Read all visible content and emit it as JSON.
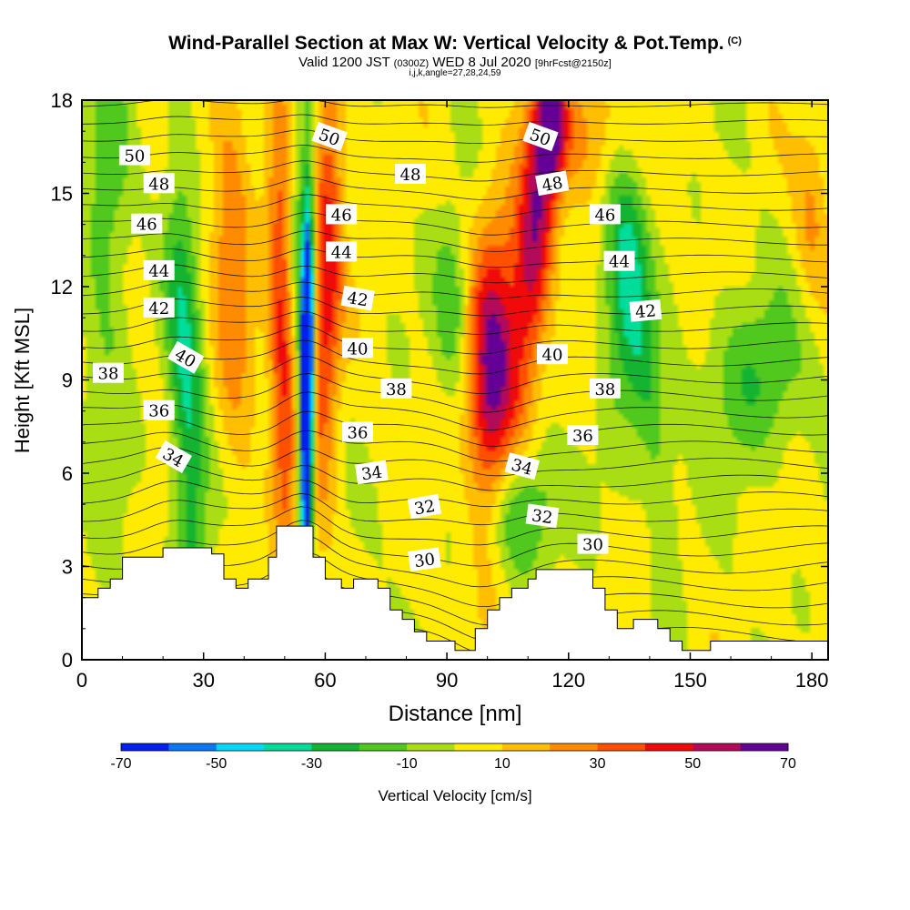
{
  "header": {
    "title": "Wind-Parallel Section at Max W: Vertical Velocity & Pot.Temp.",
    "copyright_mark": "(C)",
    "valid_prefix": "Valid 1200 JST",
    "valid_utc": "(0300Z)",
    "valid_date": "WED 8 Jul 2020",
    "forecast_info": "[9hrFcst@2150z]",
    "indices": "i,j,k,angle=27,28,24,59"
  },
  "chart_data": {
    "type": "contour-section",
    "xlabel": "Distance [nm]",
    "ylabel": "Height [Kft MSL]",
    "xlim": [
      0,
      184
    ],
    "ylim": [
      0,
      18
    ],
    "x_ticks": [
      0,
      30,
      60,
      90,
      120,
      150,
      180
    ],
    "y_ticks": [
      0,
      3,
      6,
      9,
      12,
      15,
      18
    ],
    "colorbar": {
      "label": "Vertical Velocity [cm/s]",
      "tick_labels": [
        -70,
        -50,
        -30,
        -10,
        10,
        30,
        50,
        70
      ],
      "bounds": [
        -70,
        -60,
        -50,
        -40,
        -30,
        -20,
        -10,
        0,
        10,
        20,
        30,
        40,
        50,
        60,
        70
      ],
      "colors": [
        "#0020f0",
        "#0a78f5",
        "#00d8f8",
        "#00dc9a",
        "#14b432",
        "#50c81e",
        "#aade14",
        "#ffeb00",
        "#ffbe00",
        "#ff8c00",
        "#ff5000",
        "#f00a0a",
        "#b40a5a",
        "#640096"
      ]
    },
    "contour_labels": [
      {
        "text": "50",
        "x": 13,
        "y": 16.2,
        "angle": 0
      },
      {
        "text": "48",
        "x": 19,
        "y": 15.3,
        "angle": 0
      },
      {
        "text": "46",
        "x": 16,
        "y": 14.0,
        "angle": 0
      },
      {
        "text": "44",
        "x": 19,
        "y": 12.5,
        "angle": 0
      },
      {
        "text": "42",
        "x": 19,
        "y": 11.3,
        "angle": 0
      },
      {
        "text": "40",
        "x": 25.5,
        "y": 9.7,
        "angle": 30
      },
      {
        "text": "38",
        "x": 6.5,
        "y": 9.2,
        "angle": 0
      },
      {
        "text": "36",
        "x": 19,
        "y": 8.0,
        "angle": 0
      },
      {
        "text": "34",
        "x": 22.5,
        "y": 6.5,
        "angle": 30
      },
      {
        "text": "50",
        "x": 61,
        "y": 16.8,
        "angle": 20
      },
      {
        "text": "46",
        "x": 64,
        "y": 14.3,
        "angle": 0
      },
      {
        "text": "44",
        "x": 64,
        "y": 13.1,
        "angle": 0
      },
      {
        "text": "42",
        "x": 68,
        "y": 11.6,
        "angle": 10
      },
      {
        "text": "40",
        "x": 68,
        "y": 10.0,
        "angle": 0
      },
      {
        "text": "36",
        "x": 68,
        "y": 7.3,
        "angle": 0
      },
      {
        "text": "34",
        "x": 71.5,
        "y": 6.0,
        "angle": -8
      },
      {
        "text": "48",
        "x": 81,
        "y": 15.6,
        "angle": 0
      },
      {
        "text": "38",
        "x": 77.5,
        "y": 8.7,
        "angle": 0
      },
      {
        "text": "32",
        "x": 84.5,
        "y": 4.9,
        "angle": -10
      },
      {
        "text": "30",
        "x": 84.5,
        "y": 3.2,
        "angle": -8
      },
      {
        "text": "50",
        "x": 113,
        "y": 16.8,
        "angle": 20
      },
      {
        "text": "48",
        "x": 116,
        "y": 15.3,
        "angle": -10
      },
      {
        "text": "46",
        "x": 129,
        "y": 14.3,
        "angle": 0
      },
      {
        "text": "44",
        "x": 132.5,
        "y": 12.8,
        "angle": 0
      },
      {
        "text": "42",
        "x": 139,
        "y": 11.2,
        "angle": -5
      },
      {
        "text": "40",
        "x": 116,
        "y": 9.8,
        "angle": 0
      },
      {
        "text": "38",
        "x": 129,
        "y": 8.7,
        "angle": 0
      },
      {
        "text": "36",
        "x": 123.5,
        "y": 7.2,
        "angle": 0
      },
      {
        "text": "34",
        "x": 108.5,
        "y": 6.2,
        "angle": 15
      },
      {
        "text": "32",
        "x": 113.5,
        "y": 4.6,
        "angle": 8
      },
      {
        "text": "30",
        "x": 126,
        "y": 3.7,
        "angle": 0
      }
    ]
  }
}
